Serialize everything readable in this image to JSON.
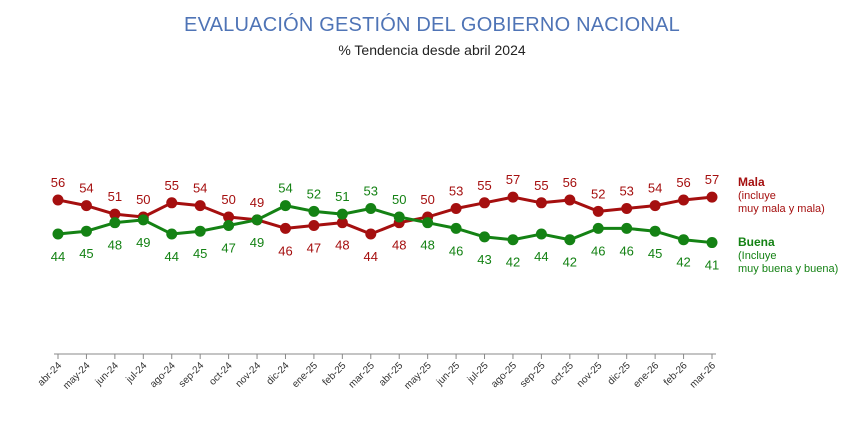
{
  "title": "EVALUACIÓN GESTIÓN DEL GOBIERNO NACIONAL",
  "subtitle": "% Tendencia desde abril 2024",
  "colors": {
    "mala": "#a50f0f",
    "buena": "#148214",
    "axis": "#888888",
    "title": "#4f74b6"
  },
  "legend": {
    "mala_title": "Mala",
    "mala_sub1": "(incluye",
    "mala_sub2": "muy mala y mala)",
    "buena_title": "Buena",
    "buena_sub1": "(Incluye",
    "buena_sub2": "muy buena y buena)"
  },
  "chart_data": {
    "type": "line",
    "title": "EVALUACIÓN GESTIÓN DEL GOBIERNO NACIONAL",
    "subtitle": "% Tendencia desde abril 2024",
    "categories": [
      "abr-24",
      "may-24",
      "jun-24",
      "jul-24",
      "ago-24",
      "sep-24",
      "oct-24",
      "nov-24",
      "dic-24",
      "ene-25",
      "feb-25",
      "mar-25",
      "abr-25",
      "may-25",
      "jun-25",
      "jul-25",
      "ago-25",
      "sep-25",
      "oct-25",
      "nov-25",
      "dic-25",
      "ene-26",
      "feb-26",
      "mar-26"
    ],
    "series": [
      {
        "name": "Mala",
        "color": "#a50f0f",
        "values": [
          56,
          54,
          51,
          50,
          55,
          54,
          50,
          49,
          46,
          47,
          48,
          44,
          48,
          50,
          53,
          55,
          57,
          55,
          56,
          52,
          53,
          54,
          56,
          57
        ]
      },
      {
        "name": "Buena",
        "color": "#148214",
        "values": [
          44,
          45,
          48,
          49,
          44,
          45,
          47,
          49,
          54,
          52,
          51,
          53,
          50,
          48,
          46,
          43,
          42,
          44,
          42,
          46,
          46,
          45,
          42,
          41
        ]
      }
    ],
    "labels_above": {
      "Mala": [
        true,
        true,
        true,
        true,
        true,
        true,
        true,
        true,
        false,
        false,
        false,
        false,
        false,
        true,
        true,
        true,
        true,
        true,
        true,
        true,
        true,
        true,
        true,
        true
      ],
      "Buena": [
        false,
        false,
        false,
        false,
        false,
        false,
        false,
        false,
        true,
        true,
        true,
        true,
        true,
        false,
        false,
        false,
        false,
        false,
        false,
        false,
        false,
        false,
        false,
        false
      ]
    },
    "ylim": [
      0,
      100
    ],
    "xlabel": "",
    "ylabel": "",
    "grid": false,
    "legend_position": "right"
  }
}
